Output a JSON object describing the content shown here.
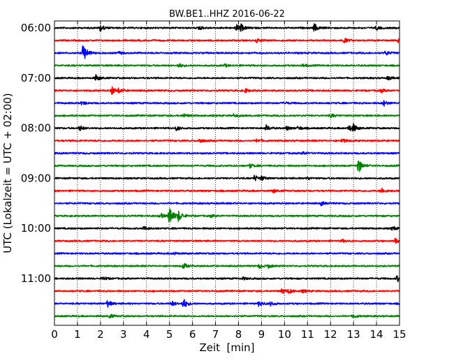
{
  "chart_data": {
    "type": "line",
    "title": "BW.BE1..HHZ 2016-06-22",
    "xlabel": "Zeit  [min]",
    "ylabel": "UTC (Lokalzeit = UTC + 02:00)",
    "xlim": [
      0,
      15
    ],
    "x_ticks": [
      "0",
      "1",
      "2",
      "3",
      "4",
      "5",
      "6",
      "7",
      "8",
      "9",
      "10",
      "11",
      "12",
      "13",
      "14",
      "15"
    ],
    "x_grid": true,
    "y_ticks": [
      {
        "label": "06:00",
        "trace": 0
      },
      {
        "label": "07:00",
        "trace": 4
      },
      {
        "label": "08:00",
        "trace": 8
      },
      {
        "label": "09:00",
        "trace": 12
      },
      {
        "label": "10:00",
        "trace": 16
      },
      {
        "label": "11:00",
        "trace": 20
      }
    ],
    "trace_minutes": 15,
    "colors": [
      "#000000",
      "#ff0000",
      "#0000ff",
      "#008000"
    ],
    "traces": [
      {
        "start": "06:00",
        "events": [
          [
            2.0,
            0.5
          ],
          [
            6.3,
            0.3
          ],
          [
            7.9,
            0.5
          ],
          [
            8.1,
            0.45
          ],
          [
            11.3,
            0.6
          ],
          [
            14.0,
            0.3
          ]
        ]
      },
      {
        "start": "06:15",
        "events": [
          [
            8.8,
            0.3
          ],
          [
            12.6,
            0.35
          ],
          [
            14.9,
            0.5
          ]
        ]
      },
      {
        "start": "06:30",
        "events": [
          [
            1.25,
            1.5
          ],
          [
            14.4,
            0.35
          ],
          [
            2.8,
            0.2
          ]
        ]
      },
      {
        "start": "06:45",
        "events": [
          [
            5.4,
            0.35
          ],
          [
            7.4,
            0.2
          ],
          [
            10.8,
            0.2
          ]
        ]
      },
      {
        "start": "07:00",
        "events": [
          [
            1.8,
            0.5
          ],
          [
            14.5,
            0.3
          ]
        ]
      },
      {
        "start": "07:15",
        "events": [
          [
            2.5,
            0.6
          ],
          [
            2.8,
            0.3
          ],
          [
            8.3,
            0.3
          ],
          [
            14.2,
            0.3
          ]
        ]
      },
      {
        "start": "07:30",
        "events": [
          [
            1.2,
            0.3
          ],
          [
            10.0,
            0.2
          ],
          [
            14.3,
            0.45
          ]
        ]
      },
      {
        "start": "07:45",
        "events": [
          [
            5.6,
            0.3
          ],
          [
            7.8,
            0.2
          ],
          [
            12.0,
            0.3
          ]
        ]
      },
      {
        "start": "08:00",
        "events": [
          [
            1.1,
            0.4
          ],
          [
            5.3,
            0.35
          ],
          [
            9.2,
            0.45
          ],
          [
            10.1,
            0.3
          ],
          [
            10.6,
            0.3
          ],
          [
            12.8,
            0.55
          ],
          [
            13.0,
            0.5
          ]
        ]
      },
      {
        "start": "08:15",
        "events": [
          [
            6.3,
            0.35
          ],
          [
            8.8,
            0.25
          ],
          [
            12.5,
            0.4
          ]
        ]
      },
      {
        "start": "08:30",
        "events": [
          [
            10.8,
            0.2
          ]
        ]
      },
      {
        "start": "08:45",
        "events": [
          [
            8.5,
            0.3
          ],
          [
            13.2,
            1.2
          ]
        ]
      },
      {
        "start": "09:00",
        "events": [
          [
            8.7,
            0.45
          ],
          [
            9.0,
            0.3
          ],
          [
            11.0,
            0.2
          ]
        ]
      },
      {
        "start": "09:15",
        "events": [
          [
            9.5,
            0.3
          ],
          [
            14.2,
            0.45
          ]
        ]
      },
      {
        "start": "09:30",
        "events": [
          [
            11.6,
            0.3
          ]
        ]
      },
      {
        "start": "09:45",
        "events": [
          [
            4.6,
            0.4
          ],
          [
            5.0,
            1.6
          ],
          [
            5.4,
            0.8
          ],
          [
            6.8,
            0.2
          ]
        ]
      },
      {
        "start": "10:00",
        "events": [
          [
            3.9,
            0.35
          ],
          [
            14.7,
            0.3
          ]
        ]
      },
      {
        "start": "10:15",
        "events": [
          [
            12.5,
            0.2
          ],
          [
            14.8,
            0.35
          ]
        ]
      },
      {
        "start": "10:30",
        "events": [
          [
            5.2,
            0.2
          ]
        ]
      },
      {
        "start": "10:45",
        "events": [
          [
            5.6,
            0.45
          ],
          [
            8.9,
            0.3
          ],
          [
            9.3,
            0.25
          ]
        ]
      },
      {
        "start": "11:00",
        "events": [
          [
            2.1,
            0.3
          ],
          [
            8.2,
            0.2
          ],
          [
            14.9,
            0.45
          ]
        ]
      },
      {
        "start": "11:15",
        "events": [
          [
            9.9,
            0.4
          ],
          [
            10.2,
            0.35
          ],
          [
            10.8,
            0.2
          ]
        ]
      },
      {
        "start": "11:30",
        "events": [
          [
            2.3,
            0.55
          ],
          [
            5.1,
            0.4
          ],
          [
            5.6,
            0.8
          ],
          [
            8.9,
            0.45
          ],
          [
            9.4,
            0.3
          ]
        ]
      },
      {
        "start": "11:45",
        "events": [
          [
            2.4,
            0.3
          ],
          [
            13.0,
            0.3
          ]
        ]
      }
    ]
  }
}
